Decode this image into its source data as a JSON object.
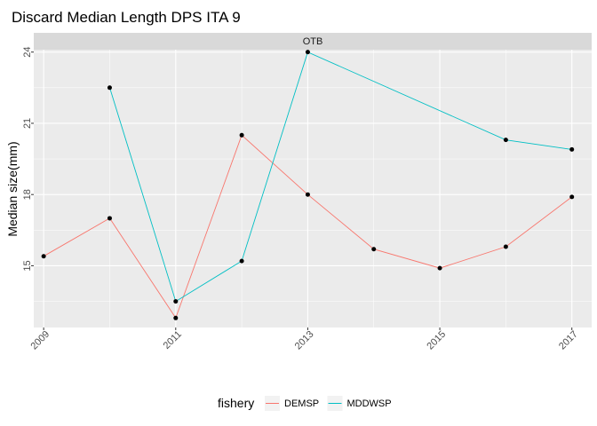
{
  "chart_data": {
    "type": "line",
    "title": "Discard Median Length DPS ITA 9",
    "facet": "OTB",
    "xlabel": "",
    "ylabel": "Median size(mm)",
    "x_ticks": [
      "2009",
      "2011",
      "2013",
      "2015",
      "2017"
    ],
    "y_ticks": [
      "15",
      "18",
      "21",
      "24"
    ],
    "xlim": [
      2008.85,
      2017.3
    ],
    "ylim": [
      12.4,
      24.1
    ],
    "grid": true,
    "legend_title": "fishery",
    "legend_position": "bottom",
    "series": [
      {
        "name": "DEMSP",
        "color": "#F8766D",
        "x": [
          2009,
          2010,
          2011,
          2012,
          2013,
          2014,
          2015,
          2016,
          2017
        ],
        "y": [
          15.4,
          17.0,
          12.8,
          20.5,
          18.0,
          15.7,
          14.9,
          15.8,
          17.9
        ]
      },
      {
        "name": "MDDWSP",
        "color": "#00BFC4",
        "x": [
          2010,
          2011,
          2012,
          2013,
          2016,
          2017
        ],
        "y": [
          22.5,
          13.5,
          15.2,
          24.0,
          20.3,
          19.9
        ]
      }
    ],
    "point_color": "#000000"
  },
  "colors": {
    "panel_bg": "#EBEBEB",
    "grid": "#FFFFFF",
    "strip_bg": "#D9D9D9"
  }
}
